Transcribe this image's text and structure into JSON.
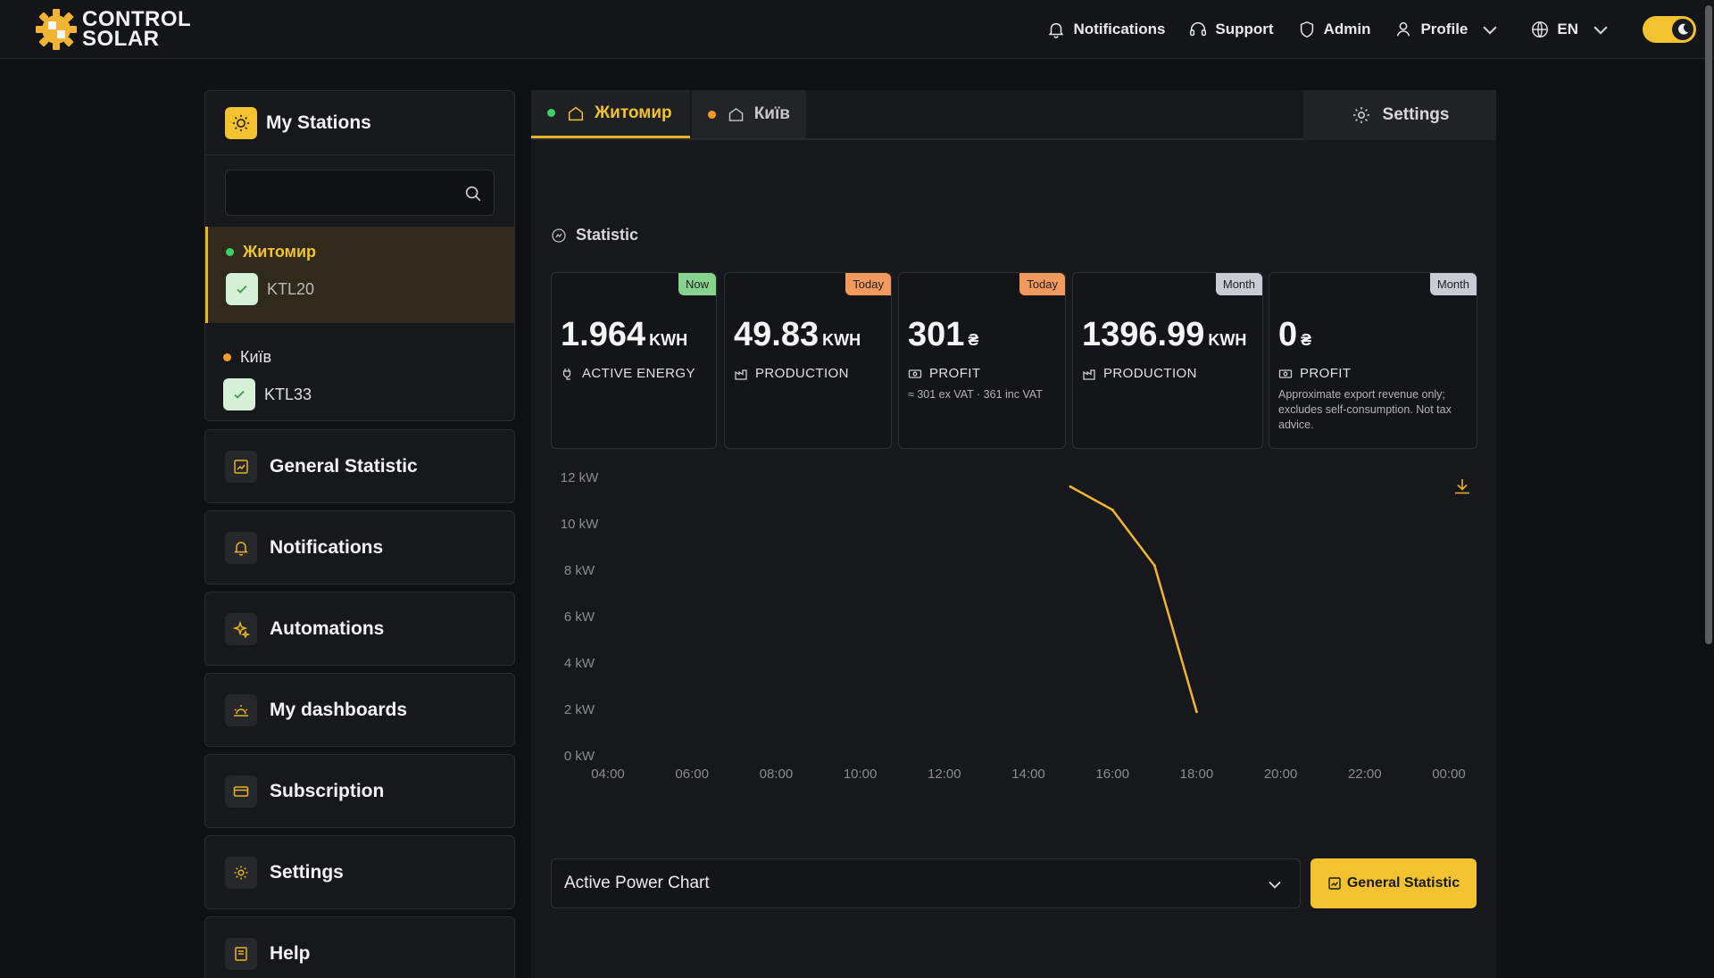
{
  "brand": {
    "line1": "CONTROL",
    "line2": "SOLAR"
  },
  "topnav": {
    "notifications": "Notifications",
    "support": "Support",
    "admin": "Admin",
    "profile": "Profile",
    "language": "EN"
  },
  "sidebar": {
    "title": "My Stations",
    "search": {
      "value": "",
      "placeholder": ""
    },
    "stations": [
      {
        "name": "Житомир",
        "status": "online",
        "device": "KTL20"
      },
      {
        "name": "Київ",
        "status": "warning",
        "device": "KTL33"
      }
    ],
    "menu": [
      {
        "label": "General Statistic",
        "icon": "chart-icon"
      },
      {
        "label": "Notifications",
        "icon": "bell-icon"
      },
      {
        "label": "Automations",
        "icon": "sparkle-icon"
      },
      {
        "label": "My dashboards",
        "icon": "sun-rise-icon"
      },
      {
        "label": "Subscription",
        "icon": "card-icon"
      },
      {
        "label": "Settings",
        "icon": "gear-icon"
      },
      {
        "label": "Help",
        "icon": "book-icon"
      }
    ]
  },
  "main": {
    "tabs": [
      {
        "label": "Житомир",
        "status": "online"
      },
      {
        "label": "Київ",
        "status": "warning"
      }
    ],
    "settings_label": "Settings",
    "statistic_title": "Statistic",
    "kpis": [
      {
        "badge": "Now",
        "value": "1.964",
        "unit": "KWH",
        "label": "ACTIVE ENERGY",
        "note": ""
      },
      {
        "badge": "Today",
        "value": "49.83",
        "unit": "KWH",
        "label": "PRODUCTION",
        "note": ""
      },
      {
        "badge": "Today",
        "value": "301",
        "unit": "₴",
        "label": "PROFIT",
        "note": "≈ 301 ex VAT · 361 inc VAT"
      },
      {
        "badge": "Month",
        "value": "1396.99",
        "unit": "KWH",
        "label": "PRODUCTION",
        "note": ""
      },
      {
        "badge": "Month",
        "value": "0",
        "unit": "₴",
        "label": "PROFIT",
        "note": "Approximate export revenue only; excludes self-consumption. Not tax advice."
      }
    ],
    "chart_select": "Active Power Chart",
    "general_statistic_button": "General Statistic"
  },
  "colors": {
    "accent": "#f2c230",
    "online": "#3fcf6a",
    "warning": "#f39a2b",
    "line": "#f2b533"
  },
  "chart_data": {
    "type": "line",
    "x": [
      "15:00",
      "16:00",
      "17:00",
      "18:00"
    ],
    "series": [
      {
        "values": [
          11.6,
          10.6,
          8.2,
          1.9
        ]
      }
    ],
    "yticks": [
      "12 kW",
      "10 kW",
      "8 kW",
      "6 kW",
      "4 kW",
      "2 kW",
      "0 kW"
    ],
    "xticks": [
      "04:00",
      "06:00",
      "08:00",
      "10:00",
      "12:00",
      "14:00",
      "16:00",
      "18:00",
      "20:00",
      "22:00",
      "00:00"
    ],
    "ylim": [
      0,
      12
    ],
    "xlim": [
      "04:00",
      "00:00"
    ]
  }
}
